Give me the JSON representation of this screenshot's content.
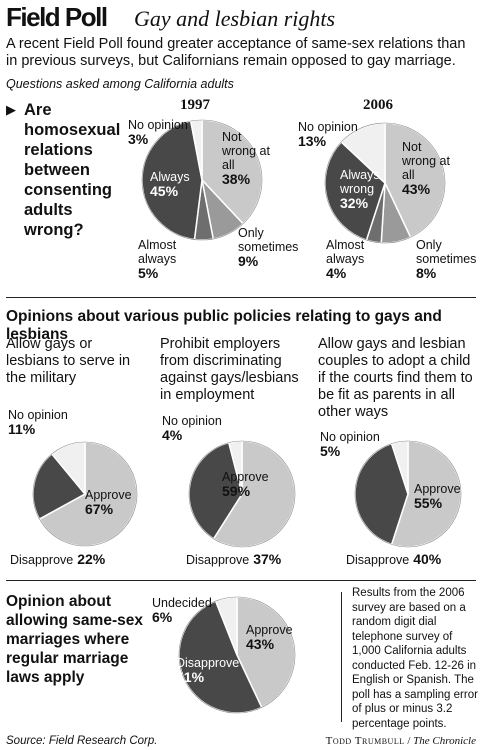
{
  "header": {
    "title": "Field Poll",
    "subtitle": "Gay and lesbian rights"
  },
  "intro": "A recent Field Poll found greater acceptance of same-sex relations than in previous surveys, but Californians remain opposed to gay marriage.",
  "questions_note": "Questions asked among California adults",
  "question_1": "Are homosexual relations between consenting adults wrong?",
  "section_title": "Opinions about various public policies relating to gays and lesbians",
  "note": "Results from the 2006 survey are based on a random digit dial telephone survey of 1,000 California adults conducted Feb. 12-26 in English or Spanish. The poll has a sampling error of plus or minus 3.2 percentage points.",
  "source": "Source: Field Research Corp.",
  "credit_name": "Todd Trumbull",
  "credit_paper": "The Chronicle",
  "chart_data": [
    {
      "type": "pie",
      "title": "1997",
      "categories": [
        "Not wrong at all",
        "Only sometimes",
        "Almost always",
        "Always",
        "No opinion"
      ],
      "values": [
        38,
        9,
        5,
        45,
        3
      ],
      "value_labels": [
        "38%",
        "9%",
        "5%",
        "45%",
        "3%"
      ],
      "colors": [
        "#c9c9c9",
        "#9a9a9a",
        "#6e6e6e",
        "#484848",
        "#f0f0f0"
      ]
    },
    {
      "type": "pie",
      "title": "2006",
      "categories": [
        "Not wrong at all",
        "Only sometimes",
        "Almost always",
        "Always wrong",
        "No opinion"
      ],
      "values": [
        43,
        8,
        4,
        32,
        13
      ],
      "value_labels": [
        "43%",
        "8%",
        "4%",
        "32%",
        "13%"
      ],
      "colors": [
        "#c9c9c9",
        "#9a9a9a",
        "#6e6e6e",
        "#484848",
        "#f0f0f0"
      ]
    },
    {
      "type": "pie",
      "title": "Allow gays or lesbians to serve in the military",
      "categories": [
        "Approve",
        "Disapprove",
        "No opinion"
      ],
      "values": [
        67,
        22,
        11
      ],
      "value_labels": [
        "67%",
        "22%",
        "11%"
      ],
      "colors": [
        "#c9c9c9",
        "#484848",
        "#f0f0f0"
      ]
    },
    {
      "type": "pie",
      "title": "Prohibit employers from discriminating against gays/lesbians in employment",
      "categories": [
        "Approve",
        "Disapprove",
        "No opinion"
      ],
      "values": [
        59,
        37,
        4
      ],
      "value_labels": [
        "59%",
        "37%",
        "4%"
      ],
      "colors": [
        "#c9c9c9",
        "#484848",
        "#f0f0f0"
      ]
    },
    {
      "type": "pie",
      "title": "Allow gays and lesbian couples to adopt a child if the courts find them to be fit as parents in all other ways",
      "categories": [
        "Approve",
        "Disapprove",
        "No opinion"
      ],
      "values": [
        55,
        40,
        5
      ],
      "value_labels": [
        "55%",
        "40%",
        "5%"
      ],
      "colors": [
        "#c9c9c9",
        "#484848",
        "#f0f0f0"
      ]
    },
    {
      "type": "pie",
      "title": "Opinion about allowing same-sex marriages where regular marriage laws apply",
      "categories": [
        "Approve",
        "Disapprove",
        "Undecided"
      ],
      "values": [
        43,
        51,
        6
      ],
      "value_labels": [
        "43%",
        "51%",
        "6%"
      ],
      "colors": [
        "#c9c9c9",
        "#484848",
        "#f0f0f0"
      ]
    }
  ]
}
